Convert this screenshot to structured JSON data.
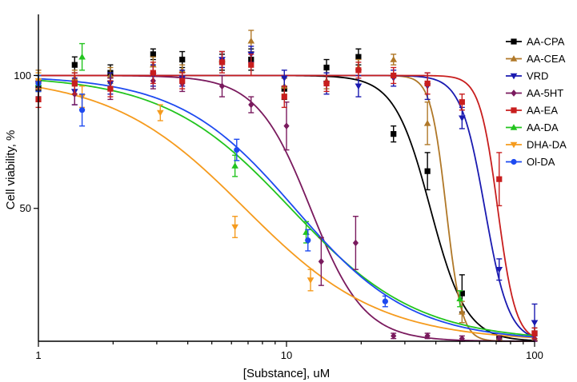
{
  "chart_data": {
    "type": "scatter",
    "xlabel": "[Substance], uM",
    "ylabel": "Cell viability, %",
    "x_scale": "log",
    "xlim": [
      1,
      100
    ],
    "ylim": [
      0,
      123
    ],
    "x_ticks": [
      {
        "value": 1,
        "label": "1"
      },
      {
        "value": 10,
        "label": "10"
      },
      {
        "value": 100,
        "label": "100"
      }
    ],
    "y_ticks": [
      {
        "value": 50,
        "label": "50"
      },
      {
        "value": 100,
        "label": "100"
      }
    ],
    "grid": false,
    "legend_position": "right",
    "series": [
      {
        "name": "AA-CPA",
        "color": "#000000",
        "marker": "square",
        "curve": {
          "ic50": 38,
          "hill": 6
        },
        "points": [
          {
            "x": 1.0,
            "y": 95,
            "err": 3
          },
          {
            "x": 1.4,
            "y": 104,
            "err": 3
          },
          {
            "x": 1.95,
            "y": 101,
            "err": 3
          },
          {
            "x": 2.9,
            "y": 108,
            "err": 2
          },
          {
            "x": 3.8,
            "y": 106,
            "err": 3
          },
          {
            "x": 5.5,
            "y": 105,
            "err": 3
          },
          {
            "x": 7.2,
            "y": 106,
            "err": 4
          },
          {
            "x": 9.8,
            "y": 95,
            "err": 4
          },
          {
            "x": 14.5,
            "y": 103,
            "err": 3
          },
          {
            "x": 19.5,
            "y": 107,
            "err": 3
          },
          {
            "x": 27,
            "y": 78,
            "err": 3
          },
          {
            "x": 37,
            "y": 64,
            "err": 7
          },
          {
            "x": 51,
            "y": 18,
            "err": 7
          },
          {
            "x": 72,
            "y": 1,
            "err": 1
          },
          {
            "x": 100,
            "y": 3,
            "err": 2
          }
        ]
      },
      {
        "name": "AA-CEA",
        "color": "#B07828",
        "marker": "triangle-up",
        "curve": {
          "ic50": 44,
          "hill": 14
        },
        "points": [
          {
            "x": 1.0,
            "y": 98,
            "err": 4
          },
          {
            "x": 1.4,
            "y": 99,
            "err": 3
          },
          {
            "x": 1.95,
            "y": 100,
            "err": 3
          },
          {
            "x": 2.9,
            "y": 104,
            "err": 3
          },
          {
            "x": 3.8,
            "y": 102,
            "err": 2
          },
          {
            "x": 5.5,
            "y": 106,
            "err": 3
          },
          {
            "x": 7.2,
            "y": 113,
            "err": 4
          },
          {
            "x": 9.8,
            "y": 96,
            "err": 3
          },
          {
            "x": 14.5,
            "y": 98,
            "err": 3
          },
          {
            "x": 19.5,
            "y": 103,
            "err": 3
          },
          {
            "x": 27,
            "y": 106,
            "err": 2
          },
          {
            "x": 37,
            "y": 82,
            "err": 8
          },
          {
            "x": 51,
            "y": 11,
            "err": 4
          },
          {
            "x": 72,
            "y": 1,
            "err": 1
          },
          {
            "x": 100,
            "y": 1,
            "err": 1
          }
        ]
      },
      {
        "name": "VRD",
        "color": "#1A1AB0",
        "marker": "triangle-down",
        "curve": {
          "ic50": 63,
          "hill": 9
        },
        "points": [
          {
            "x": 1.0,
            "y": 97,
            "err": 3
          },
          {
            "x": 1.4,
            "y": 94,
            "err": 5
          },
          {
            "x": 1.95,
            "y": 97,
            "err": 4
          },
          {
            "x": 2.9,
            "y": 100,
            "err": 4
          },
          {
            "x": 3.8,
            "y": 99,
            "err": 3
          },
          {
            "x": 5.5,
            "y": 106,
            "err": 3
          },
          {
            "x": 7.2,
            "y": 108,
            "err": 3
          },
          {
            "x": 9.8,
            "y": 99,
            "err": 3
          },
          {
            "x": 14.5,
            "y": 97,
            "err": 4
          },
          {
            "x": 19.5,
            "y": 96,
            "err": 4
          },
          {
            "x": 27,
            "y": 99,
            "err": 3
          },
          {
            "x": 37,
            "y": 96,
            "err": 5
          },
          {
            "x": 51,
            "y": 84,
            "err": 4
          },
          {
            "x": 72,
            "y": 27,
            "err": 4
          },
          {
            "x": 100,
            "y": 7,
            "err": 7
          }
        ]
      },
      {
        "name": "AA-5HT",
        "color": "#7A1A5E",
        "marker": "diamond",
        "curve": {
          "ic50": 12.5,
          "hill": 4
        },
        "points": [
          {
            "x": 1.0,
            "y": 95,
            "err": 3
          },
          {
            "x": 1.4,
            "y": 93,
            "err": 4
          },
          {
            "x": 1.95,
            "y": 95,
            "err": 4
          },
          {
            "x": 2.9,
            "y": 98,
            "err": 3
          },
          {
            "x": 3.8,
            "y": 97,
            "err": 3
          },
          {
            "x": 5.5,
            "y": 96,
            "err": 4
          },
          {
            "x": 7.2,
            "y": 89,
            "err": 3
          },
          {
            "x": 10.0,
            "y": 81,
            "err": 9
          },
          {
            "x": 13.8,
            "y": 30,
            "err": 9
          },
          {
            "x": 19.0,
            "y": 37,
            "err": 10
          },
          {
            "x": 27,
            "y": 2,
            "err": 1
          },
          {
            "x": 37,
            "y": 2,
            "err": 1
          },
          {
            "x": 51,
            "y": 1,
            "err": 1
          },
          {
            "x": 72,
            "y": 1,
            "err": 1
          },
          {
            "x": 100,
            "y": 1,
            "err": 1
          }
        ]
      },
      {
        "name": "AA-EA",
        "color": "#C81E1E",
        "marker": "square",
        "curve": {
          "ic50": 71,
          "hill": 12
        },
        "points": [
          {
            "x": 1.0,
            "y": 91,
            "err": 3
          },
          {
            "x": 1.4,
            "y": 97,
            "err": 4
          },
          {
            "x": 1.95,
            "y": 95,
            "err": 3
          },
          {
            "x": 2.9,
            "y": 101,
            "err": 4
          },
          {
            "x": 3.8,
            "y": 98,
            "err": 3
          },
          {
            "x": 5.5,
            "y": 105,
            "err": 4
          },
          {
            "x": 7.2,
            "y": 104,
            "err": 4
          },
          {
            "x": 9.8,
            "y": 92,
            "err": 4
          },
          {
            "x": 14.5,
            "y": 97,
            "err": 3
          },
          {
            "x": 19.5,
            "y": 102,
            "err": 3
          },
          {
            "x": 27,
            "y": 100,
            "err": 3
          },
          {
            "x": 37,
            "y": 97,
            "err": 4
          },
          {
            "x": 51,
            "y": 90,
            "err": 3
          },
          {
            "x": 72,
            "y": 61,
            "err": 10
          },
          {
            "x": 100,
            "y": 3,
            "err": 2
          }
        ]
      },
      {
        "name": "AA-DA",
        "color": "#22C41E",
        "marker": "triangle-up",
        "curve": {
          "ic50": 10.4,
          "hill": 1.7
        },
        "points": [
          {
            "x": 1.0,
            "y": 97,
            "err": 3
          },
          {
            "x": 1.5,
            "y": 107,
            "err": 5
          },
          {
            "x": 6.2,
            "y": 66,
            "err": 4
          },
          {
            "x": 12,
            "y": 41,
            "err": 4
          },
          {
            "x": 50,
            "y": 16,
            "err": 3
          }
        ]
      },
      {
        "name": "DHA-DA",
        "color": "#F59B1E",
        "marker": "triangle-down",
        "curve": {
          "ic50": 6.8,
          "hill": 1.6
        },
        "points": [
          {
            "x": 1.0,
            "y": 98,
            "err": 3
          },
          {
            "x": 1.5,
            "y": 92,
            "err": 4
          },
          {
            "x": 3.1,
            "y": 86,
            "err": 3
          },
          {
            "x": 6.2,
            "y": 43,
            "err": 4
          },
          {
            "x": 12.5,
            "y": 23,
            "err": 4
          }
        ]
      },
      {
        "name": "Ol-DA",
        "color": "#1E4AF0",
        "marker": "circle",
        "curve": {
          "ic50": 10.8,
          "hill": 1.85
        },
        "points": [
          {
            "x": 1.0,
            "y": 97,
            "err": 3
          },
          {
            "x": 1.5,
            "y": 87,
            "err": 6
          },
          {
            "x": 6.3,
            "y": 72,
            "err": 4
          },
          {
            "x": 12.2,
            "y": 38,
            "err": 4
          },
          {
            "x": 25,
            "y": 15,
            "err": 2
          }
        ]
      }
    ]
  }
}
